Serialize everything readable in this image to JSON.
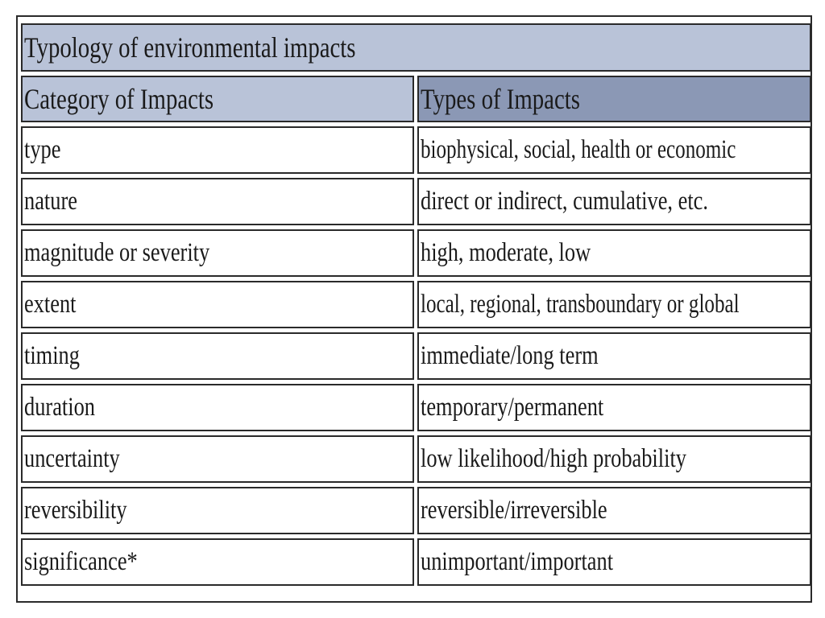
{
  "table": {
    "title": "Typology of environmental impacts",
    "headers": [
      "Category of Impacts",
      "Types of Impacts"
    ],
    "rows": [
      {
        "category": "type",
        "types": "biophysical, social, health or economic"
      },
      {
        "category": "nature",
        "types": "direct or indirect, cumulative, etc."
      },
      {
        "category": "magnitude or severity",
        "types": "high, moderate, low"
      },
      {
        "category": "extent",
        "types": "local, regional, transboundary or global"
      },
      {
        "category": "timing",
        "types": "immediate/long term"
      },
      {
        "category": "duration",
        "types": "temporary/permanent"
      },
      {
        "category": "uncertainty",
        "types": "low likelihood/high probability"
      },
      {
        "category": "reversibility",
        "types": "reversible/irreversible"
      },
      {
        "category": "significance*",
        "types": "unimportant/important"
      }
    ]
  },
  "colors": {
    "title_bg": "#b9c3d8",
    "header_left_bg": "#b9c3d8",
    "header_right_bg": "#8b98b5",
    "border": "#2a2a2a"
  }
}
